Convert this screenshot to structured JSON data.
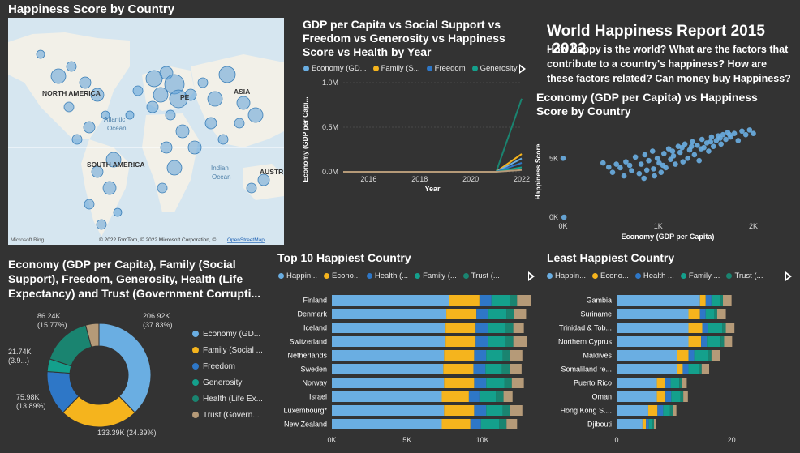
{
  "map": {
    "title": "Happiness Score by Country",
    "labels": {
      "north_america": "NORTH AMERICA",
      "south_america": "SOUTH AMERICA",
      "europe": "PE",
      "asia": "ASIA",
      "atlantic": "Atlantic",
      "ocean1": "Ocean",
      "indian": "Indian",
      "ocean2": "Ocean",
      "austr": "AUSTR"
    },
    "attribution": "© 2022 TomTom, © 2022 Microsoft Corporation, ©",
    "osm": "OpenStreetMap",
    "bing": "Microsoft Bing"
  },
  "report": {
    "title": "World Happiness Report 2015 -2022",
    "description": "How happy is the world? What are the factors that contribute to a country's happiness? How are these factors related? Can money buy Happiness?"
  },
  "colors": {
    "economy": "#6aaee2",
    "family": "#f5b41d",
    "freedom": "#2e77c7",
    "generosity": "#14a08c",
    "health": "#1a8470",
    "trust": "#b59a78",
    "happiness": "#6aaee2"
  },
  "chart_data": [
    {
      "id": "line",
      "type": "line",
      "title": "GDP per Capita vs Social Support vs Freedom vs Generosity vs Happiness Score vs Health by Year",
      "legend": [
        "Economy (GD...",
        "Family (S...",
        "Freedom",
        "Generosity"
      ],
      "xlabel": "Year",
      "ylabel": "Economy (GDP per Capi...",
      "x_ticks": [
        "2016",
        "2018",
        "2020",
        "2022"
      ],
      "y_ticks": [
        "0.0M",
        "0.5M",
        "1.0M"
      ],
      "xlim": [
        2015,
        2022
      ],
      "ylim": [
        0,
        1.0
      ],
      "x": [
        2015,
        2016,
        2017,
        2018,
        2019,
        2020,
        2021,
        2022
      ],
      "series": [
        {
          "color_key": "health",
          "values": [
            0,
            0,
            0,
            0,
            0,
            0,
            0,
            0.82
          ]
        },
        {
          "color_key": "family",
          "values": [
            0,
            0,
            0,
            0,
            0,
            0,
            0,
            0.2
          ]
        },
        {
          "color_key": "economy",
          "values": [
            0,
            0,
            0,
            0,
            0,
            0,
            0,
            0.15
          ]
        },
        {
          "color_key": "freedom",
          "values": [
            0,
            0,
            0,
            0,
            0,
            0,
            0,
            0.1
          ]
        },
        {
          "color_key": "generosity",
          "values": [
            0,
            0,
            0,
            0,
            0,
            0,
            0,
            0.05
          ]
        },
        {
          "color_key": "trust",
          "values": [
            0,
            0,
            0,
            0,
            0,
            0,
            0,
            0.02
          ]
        }
      ]
    },
    {
      "id": "scatter",
      "type": "scatter",
      "title": "Economy (GDP per Capita) vs Happiness Score by Country",
      "xlabel": "Economy (GDP per Capita)",
      "ylabel": "Happiness Score",
      "x_ticks": [
        "0K",
        "1K",
        "2K"
      ],
      "y_ticks": [
        "0K",
        "5K"
      ],
      "xlim": [
        0,
        2200
      ],
      "ylim": [
        0,
        7700
      ],
      "points": [
        [
          10,
          0
        ],
        [
          0,
          5000
        ],
        [
          420,
          4600
        ],
        [
          480,
          4250
        ],
        [
          520,
          3800
        ],
        [
          560,
          4500
        ],
        [
          600,
          4200
        ],
        [
          640,
          3500
        ],
        [
          660,
          4700
        ],
        [
          700,
          4400
        ],
        [
          720,
          3950
        ],
        [
          760,
          5100
        ],
        [
          800,
          3700
        ],
        [
          820,
          4500
        ],
        [
          860,
          5300
        ],
        [
          880,
          4000
        ],
        [
          900,
          4800
        ],
        [
          940,
          5600
        ],
        [
          960,
          3500
        ],
        [
          990,
          5000
        ],
        [
          1010,
          4600
        ],
        [
          1030,
          3800
        ],
        [
          1060,
          5400
        ],
        [
          1080,
          4200
        ],
        [
          1110,
          5800
        ],
        [
          1130,
          4900
        ],
        [
          1160,
          5200
        ],
        [
          1180,
          4500
        ],
        [
          1210,
          6000
        ],
        [
          1230,
          5500
        ],
        [
          1260,
          4700
        ],
        [
          1280,
          6200
        ],
        [
          1310,
          5000
        ],
        [
          1330,
          5700
        ],
        [
          1360,
          6400
        ],
        [
          1380,
          5300
        ],
        [
          1410,
          6100
        ],
        [
          1430,
          4800
        ],
        [
          1460,
          6600
        ],
        [
          1480,
          5900
        ],
        [
          1510,
          6300
        ],
        [
          1530,
          5600
        ],
        [
          1560,
          6800
        ],
        [
          1580,
          6000
        ],
        [
          1610,
          6500
        ],
        [
          1630,
          6900
        ],
        [
          1660,
          6200
        ],
        [
          1680,
          7000
        ],
        [
          1710,
          6600
        ],
        [
          1730,
          7200
        ],
        [
          1760,
          6800
        ],
        [
          1800,
          7100
        ],
        [
          1840,
          6500
        ],
        [
          1880,
          7300
        ],
        [
          1920,
          7000
        ],
        [
          1960,
          7400
        ],
        [
          2000,
          7100
        ],
        [
          1250,
          5900
        ],
        [
          1150,
          5600
        ],
        [
          1050,
          4400
        ],
        [
          950,
          4100
        ],
        [
          850,
          3300
        ],
        [
          1350,
          6000
        ],
        [
          1450,
          5800
        ],
        [
          1550,
          6400
        ],
        [
          1650,
          6700
        ],
        [
          1750,
          7000
        ]
      ]
    },
    {
      "id": "donut",
      "type": "pie",
      "title": "Economy (GDP per Capita), Family (Social Support), Freedom, Generosity, Health (Life Expectancy) and Trust (Government Corrupti...",
      "slices": [
        {
          "name": "Economy (GD...",
          "color_key": "economy",
          "value": 206.92,
          "label": "206.92K",
          "pct": "(37.83%)"
        },
        {
          "name": "Family (Social ...",
          "color_key": "family",
          "value": 133.39,
          "label": "133.39K (24.39%)",
          "pct": ""
        },
        {
          "name": "Freedom",
          "color_key": "freedom",
          "value": 75.98,
          "label": "75.98K",
          "pct": "(13.89%)"
        },
        {
          "name": "Generosity",
          "color_key": "generosity",
          "value": 21.74,
          "label": "21.74K",
          "pct": "(3.9...)"
        },
        {
          "name": "Health (Life Ex...",
          "color_key": "health",
          "value": 86.24,
          "label": "86.24K",
          "pct": "(15.77%)"
        },
        {
          "name": "Trust (Govern...",
          "color_key": "trust",
          "value": 22.7,
          "label": "",
          "pct": ""
        }
      ]
    },
    {
      "id": "top10",
      "type": "bar",
      "title": "Top 10 Happiest Country",
      "legend": [
        "Happin...",
        "Econo...",
        "Health (...",
        "Family (...",
        "Trust (..."
      ],
      "x_ticks": [
        "0K",
        "5K",
        "10K"
      ],
      "xlim": [
        0,
        13200
      ],
      "categories": [
        "Finland",
        "Denmark",
        "Iceland",
        "Switzerland",
        "Netherlands",
        "Sweden",
        "Norway",
        "Israel",
        "Luxembourg*",
        "New Zealand"
      ],
      "series": [
        {
          "color_key": "happiness",
          "values": [
            7800,
            7600,
            7550,
            7550,
            7450,
            7400,
            7450,
            7300,
            7450,
            7300
          ]
        },
        {
          "color_key": "family",
          "values": [
            2000,
            2000,
            2000,
            2000,
            2000,
            2000,
            2000,
            1800,
            2000,
            1900
          ]
        },
        {
          "color_key": "freedom",
          "values": [
            800,
            800,
            800,
            800,
            800,
            800,
            800,
            700,
            800,
            700
          ]
        },
        {
          "color_key": "generosity",
          "values": [
            1200,
            1200,
            1200,
            1200,
            1100,
            1100,
            1200,
            1100,
            1100,
            1200
          ]
        },
        {
          "color_key": "health",
          "values": [
            500,
            500,
            500,
            500,
            500,
            500,
            500,
            500,
            500,
            500
          ]
        },
        {
          "color_key": "trust",
          "values": [
            900,
            800,
            700,
            900,
            800,
            800,
            800,
            600,
            800,
            700
          ]
        }
      ]
    },
    {
      "id": "least",
      "type": "bar",
      "title": "Least Happiest Country",
      "legend": [
        "Happin...",
        "Econo...",
        "Health ...",
        "Family ...",
        "Trust (..."
      ],
      "x_ticks": [
        "0",
        "20"
      ],
      "xlim": [
        0,
        30.5
      ],
      "categories": [
        "Gambia",
        "Suriname",
        "Trinidad & Tob...",
        "Northern Cyprus",
        "Maldives",
        "Somaliland re...",
        "Puerto Rico",
        "Oman",
        "Hong Kong S....",
        "Djibouti"
      ],
      "series": [
        {
          "color_key": "happiness",
          "values": [
            14.5,
            12.5,
            12.5,
            12.5,
            10.5,
            10.5,
            7,
            7,
            5.5,
            4.5
          ]
        },
        {
          "color_key": "family",
          "values": [
            1.0,
            2.0,
            2.4,
            2.2,
            2.0,
            1.0,
            1.4,
            1.5,
            1.6,
            0.6
          ]
        },
        {
          "color_key": "freedom",
          "values": [
            1.0,
            1.0,
            1.0,
            1.0,
            1.0,
            1.0,
            1.0,
            1.0,
            1.0,
            0.5
          ]
        },
        {
          "color_key": "generosity",
          "values": [
            1.5,
            1.5,
            2.5,
            2.4,
            2.4,
            1.8,
            1.5,
            1.6,
            1.2,
            0.6
          ]
        },
        {
          "color_key": "health",
          "values": [
            0.5,
            0.5,
            0.6,
            0.6,
            0.6,
            0.5,
            0.5,
            0.5,
            0.5,
            0.3
          ]
        },
        {
          "color_key": "trust",
          "values": [
            1.5,
            1.5,
            1.5,
            1.4,
            1.5,
            1.3,
            0.8,
            0.8,
            0.6,
            0.4
          ]
        }
      ]
    }
  ]
}
